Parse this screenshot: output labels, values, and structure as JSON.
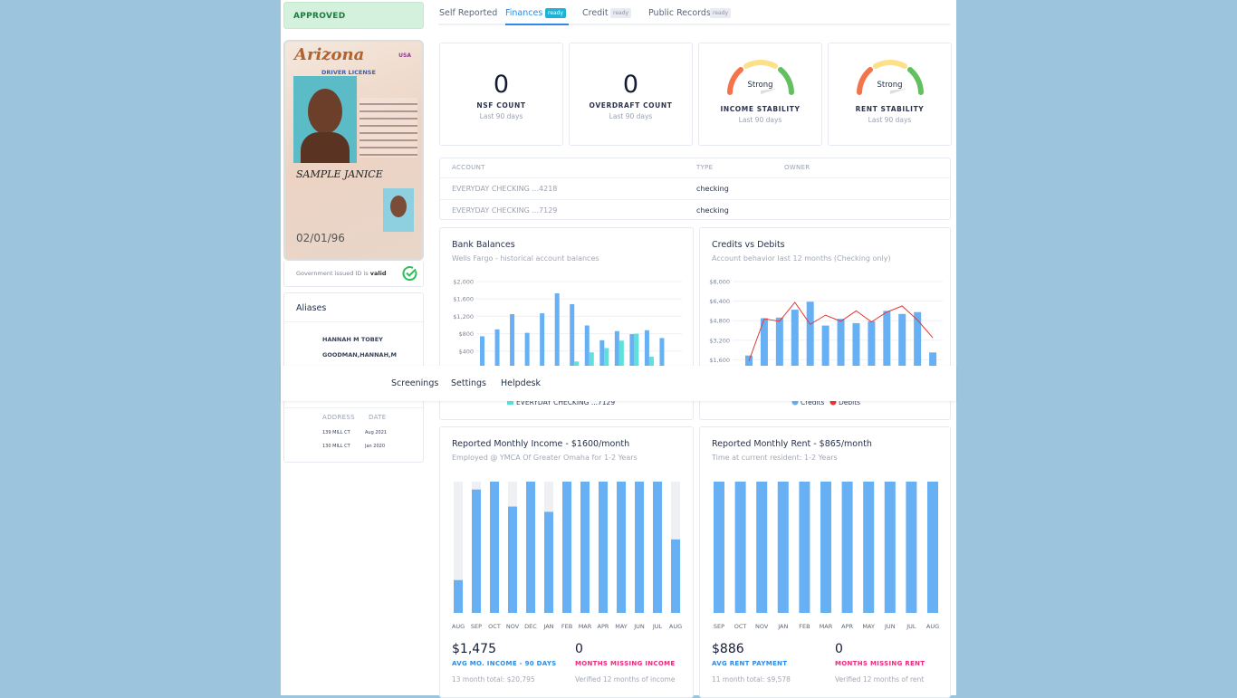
{
  "status": "APPROVED",
  "id_card": {
    "state": "Arizona",
    "country": "USA",
    "type": "DRIVER LICENSE",
    "dob": "02/01/96",
    "name": "SAMPLE JANICE"
  },
  "id_valid": {
    "text": "Government issued ID is ",
    "emph": "valid"
  },
  "aliases": {
    "title": "Aliases",
    "items": [
      "HANNAH M TOBEY",
      "GOODMAN,HANNAH,M"
    ]
  },
  "addresses": {
    "headers": [
      "ADDRESS",
      "DATE"
    ],
    "rows": [
      [
        "139 MILL CT",
        "Aug 2021"
      ],
      [
        "130 MILL CT",
        "Jan 2020"
      ]
    ]
  },
  "tabs": [
    {
      "label": "Self Reported"
    },
    {
      "label": "Finances",
      "badge": "ready",
      "active": true
    },
    {
      "label": "Credit",
      "badge": "ready"
    },
    {
      "label": "Public Records",
      "badge": "ready"
    }
  ],
  "stats": [
    {
      "value": "0",
      "label": "NSF COUNT",
      "sub": "Last 90 days"
    },
    {
      "value": "0",
      "label": "OVERDRAFT COUNT",
      "sub": "Last 90 days"
    },
    {
      "gauge": "Strong",
      "label": "INCOME STABILITY",
      "sub": "Last 90 days"
    },
    {
      "gauge": "Strong",
      "label": "RENT STABILITY",
      "sub": "Last 90 days"
    }
  ],
  "accounts": {
    "headers": [
      "ACCOUNT",
      "TYPE",
      "OWNER"
    ],
    "rows": [
      [
        "EVERYDAY CHECKING ...4218",
        "checking",
        ""
      ],
      [
        "EVERYDAY CHECKING ...7129",
        "checking",
        ""
      ]
    ]
  },
  "nav": [
    "Screenings",
    "Settings",
    "Helpdesk"
  ],
  "colors": {
    "blue": "#68b0f4",
    "teal": "#5fe0da",
    "red": "#e53935",
    "track": "#eef0f4",
    "kpi_blue": "#2d8ae6",
    "kpi_pink": "#ee2a7b"
  },
  "chart_data": [
    {
      "type": "bar",
      "title": "Bank Balances",
      "subtitle": "Wells Fargo - historical account balances",
      "ylim": [
        0,
        2000
      ],
      "yticks": [
        "$400",
        "$800",
        "$1,200",
        "$1,600",
        "$2,000"
      ],
      "ytick_values": [
        400,
        800,
        1200,
        1600,
        2000
      ],
      "series": [
        {
          "values": [
            740,
            900,
            1250,
            820,
            1270,
            1730,
            1480,
            990,
            650,
            860,
            790,
            880,
            700
          ]
        },
        {
          "name": "EVERYDAY CHECKING ...7129",
          "values": [
            0,
            0,
            0,
            0,
            0,
            0,
            160,
            370,
            470,
            640,
            800,
            270,
            20
          ]
        }
      ],
      "legend": "bottom"
    },
    {
      "type": "bar",
      "title": "Credits vs Debits",
      "subtitle": "Account behavior last 12 months (Checking only)",
      "ylim": [
        0,
        8000
      ],
      "yticks": [
        "$1,600",
        "$3,200",
        "$4,800",
        "$6,400",
        "$8,000"
      ],
      "ytick_values": [
        1600,
        3200,
        4800,
        6400,
        8000
      ],
      "series": [
        {
          "name": "Credits",
          "type": "bar",
          "values": [
            1950,
            5000,
            5050,
            5700,
            6350,
            4400,
            4950,
            4600,
            4750,
            5600,
            5350,
            5500,
            2200
          ]
        },
        {
          "name": "Debits",
          "type": "line",
          "values": [
            1500,
            4950,
            4750,
            6300,
            4500,
            5250,
            4750,
            5600,
            4700,
            5500,
            6000,
            4850,
            3400
          ]
        }
      ],
      "legend": "bottom"
    },
    {
      "type": "bar",
      "title": "Reported Monthly Income - $1600/month",
      "subtitle": "Employed @ YMCA Of Greater Omaha for 1-2 Years",
      "categories": [
        "AUG",
        "SEP",
        "OCT",
        "NOV",
        "DEC",
        "JAN",
        "FEB",
        "MAR",
        "APR",
        "MAY",
        "JUN",
        "JUL",
        "AUG"
      ],
      "values_fraction": [
        0.25,
        0.94,
        1,
        0.81,
        1,
        0.77,
        1,
        1,
        1,
        1,
        1,
        1,
        0.56
      ],
      "kpis": [
        {
          "value": "$1,475",
          "label": "AVG MO. INCOME - 90 DAYS",
          "sub": "13 month total: $20,795"
        },
        {
          "value": "0",
          "label": "MONTHS MISSING INCOME",
          "sub": "Verified 12 months of income"
        }
      ]
    },
    {
      "type": "bar",
      "title": "Reported Monthly Rent - $865/month",
      "subtitle": "Time at current resident: 1-2 Years",
      "categories": [
        "SEP",
        "OCT",
        "NOV",
        "JAN",
        "FEB",
        "MAR",
        "APR",
        "MAY",
        "JUN",
        "JUL",
        "AUG"
      ],
      "values_fraction": [
        1,
        1,
        1,
        1,
        1,
        1,
        1,
        1,
        1,
        1,
        1
      ],
      "kpis": [
        {
          "value": "$886",
          "label": "AVG RENT PAYMENT",
          "sub": "11 month total: $9,578"
        },
        {
          "value": "0",
          "label": "MONTHS MISSING RENT",
          "sub": "Verified 12 months of rent"
        }
      ]
    }
  ]
}
